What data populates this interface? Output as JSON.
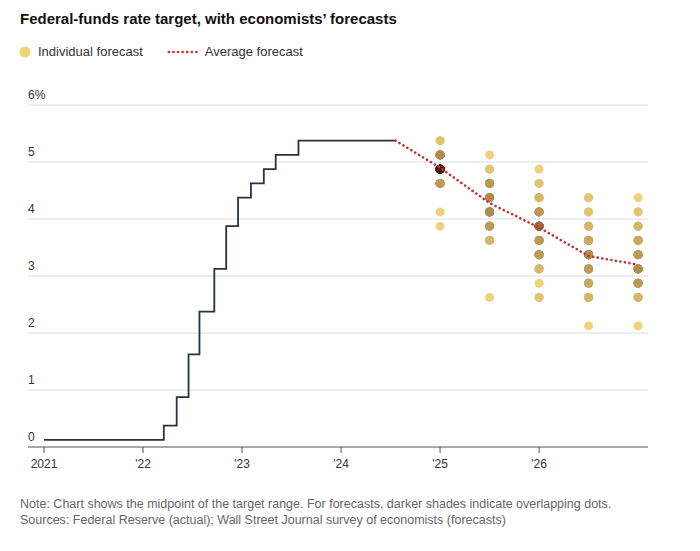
{
  "chart_data": {
    "type": "line",
    "title": "Federal-funds rate target, with economists’ forecasts",
    "note": "Note: Chart shows the midpoint of the target range. For forecasts, darker shades indicate overlapping dots.",
    "source": "Sources: Federal Reserve (actual); Wall Street Journal survey of economists (forecasts)",
    "xlim": [
      2021,
      2027.1
    ],
    "xticks": [
      {
        "value": 2021,
        "label": "2021"
      },
      {
        "value": 2022,
        "label": "'22"
      },
      {
        "value": 2023,
        "label": "'23"
      },
      {
        "value": 2024,
        "label": "'24"
      },
      {
        "value": 2025,
        "label": "'25"
      },
      {
        "value": 2026,
        "label": "'26"
      }
    ],
    "ylim": [
      0,
      6
    ],
    "yticks": [
      0,
      1,
      2,
      3,
      4,
      5,
      {
        "value": 6,
        "label": "6%"
      }
    ],
    "grid": true,
    "legend": "top-left",
    "series": [
      {
        "type": "line",
        "line_style": "step",
        "color": "#2a3142",
        "x": [
          2021,
          2022.21,
          2022.34,
          2022.46,
          2022.57,
          2022.72,
          2022.84,
          2022.96,
          2023.09,
          2023.22,
          2023.34,
          2023.57,
          2024.55
        ],
        "values": [
          0.125,
          0.375,
          0.875,
          1.625,
          2.375,
          3.125,
          3.875,
          4.375,
          4.625,
          4.875,
          5.125,
          5.375,
          5.375
        ]
      },
      {
        "name": "Individual forecast",
        "type": "scatter",
        "marker": "circle",
        "color": "#f0d27a",
        "x": [
          2025,
          2025,
          2025,
          2025,
          2025,
          2025,
          2025,
          2025,
          2025,
          2025,
          2025,
          2025,
          2025,
          2025,
          2025,
          2025,
          2025,
          2025,
          2025,
          2025,
          2025,
          2025,
          2025,
          2025,
          2025,
          2025,
          2025,
          2025,
          2025,
          2025.5,
          2025.5,
          2025.5,
          2025.5,
          2025.5,
          2025.5,
          2025.5,
          2025.5,
          2025.5,
          2025.5,
          2025.5,
          2025.5,
          2025.5,
          2025.5,
          2025.5,
          2025.5,
          2025.5,
          2025.5,
          2025.5,
          2025.5,
          2025.5,
          2025.5,
          2025.5,
          2025.5,
          2025.5,
          2025.5,
          2025.5,
          2025.5,
          2025.5,
          2026,
          2026,
          2026,
          2026,
          2026,
          2026,
          2026,
          2026,
          2026,
          2026,
          2026,
          2026,
          2026,
          2026,
          2026,
          2026,
          2026,
          2026,
          2026,
          2026,
          2026,
          2026,
          2026,
          2026,
          2026,
          2026,
          2026,
          2026,
          2026,
          2026,
          2026,
          2026,
          2026,
          2026,
          2026,
          2026.5,
          2026.5,
          2026.5,
          2026.5,
          2026.5,
          2026.5,
          2026.5,
          2026.5,
          2026.5,
          2026.5,
          2026.5,
          2026.5,
          2026.5,
          2026.5,
          2026.5,
          2026.5,
          2026.5,
          2026.5,
          2026.5,
          2026.5,
          2026.5,
          2026.5,
          2026.5,
          2026.5,
          2026.5,
          2026.5,
          2026.5,
          2026.5,
          2026.5,
          2026.5,
          2027,
          2027,
          2027,
          2027,
          2027,
          2027,
          2027,
          2027,
          2027,
          2027,
          2027,
          2027,
          2027,
          2027,
          2027,
          2027,
          2027,
          2027,
          2027,
          2027,
          2027,
          2027,
          2027,
          2027,
          2027,
          2027,
          2027,
          2027,
          2027,
          2027
        ],
        "values": [
          5.375,
          5.375,
          5.125,
          5.125,
          5.125,
          5.125,
          5.125,
          5.125,
          4.875,
          4.875,
          4.875,
          4.875,
          4.875,
          4.875,
          4.875,
          4.875,
          4.875,
          4.875,
          4.875,
          4.875,
          4.875,
          4.875,
          4.625,
          4.625,
          4.625,
          4.625,
          4.625,
          4.125,
          3.875,
          5.125,
          4.875,
          4.875,
          4.625,
          4.625,
          4.625,
          4.625,
          4.625,
          4.375,
          4.375,
          4.375,
          4.375,
          4.375,
          4.375,
          4.125,
          4.125,
          4.125,
          4.125,
          4.125,
          4.125,
          3.875,
          3.875,
          3.875,
          3.875,
          3.875,
          3.625,
          3.625,
          3.625,
          2.625,
          4.875,
          4.625,
          4.625,
          4.375,
          4.375,
          4.375,
          4.125,
          4.125,
          4.125,
          4.125,
          4.125,
          3.875,
          3.875,
          3.875,
          3.875,
          3.875,
          3.875,
          3.875,
          3.875,
          3.625,
          3.625,
          3.625,
          3.625,
          3.625,
          3.375,
          3.375,
          3.375,
          3.375,
          3.375,
          3.125,
          3.125,
          3.125,
          2.875,
          2.625,
          2.625,
          4.375,
          4.375,
          4.125,
          4.125,
          3.875,
          3.875,
          3.875,
          3.625,
          3.625,
          3.625,
          3.625,
          3.375,
          3.375,
          3.375,
          3.375,
          3.375,
          3.375,
          3.125,
          3.125,
          3.125,
          3.125,
          3.125,
          2.875,
          2.875,
          2.875,
          2.875,
          2.625,
          2.625,
          2.625,
          2.125,
          4.375,
          4.125,
          4.125,
          3.875,
          3.875,
          3.875,
          3.625,
          3.625,
          3.625,
          3.625,
          3.375,
          3.375,
          3.375,
          3.375,
          3.375,
          3.125,
          3.125,
          3.125,
          3.125,
          3.125,
          3.125,
          2.875,
          2.875,
          2.875,
          2.875,
          2.875,
          2.625,
          2.625,
          2.625,
          2.125
        ]
      },
      {
        "name": "Average forecast",
        "type": "line",
        "line_style": "dotted",
        "color": "#c8312f",
        "x": [
          2024.55,
          2025,
          2025.5,
          2026,
          2026.5,
          2027
        ],
        "values": [
          5.375,
          4.9,
          4.28,
          3.85,
          3.35,
          3.2
        ]
      }
    ]
  }
}
